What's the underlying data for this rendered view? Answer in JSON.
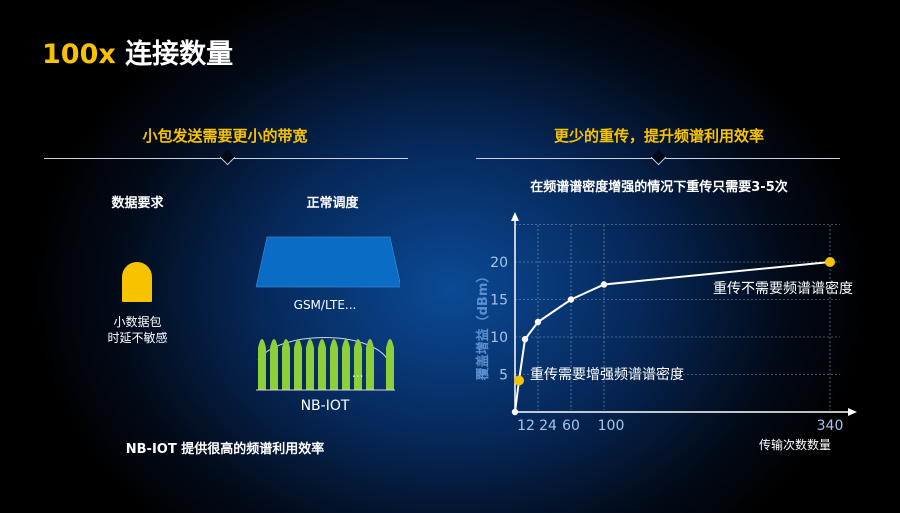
{
  "title": {
    "highlight": "100x",
    "rest": " 连接数量"
  },
  "left": {
    "heading": "小包发送需要更小的带宽",
    "col1_label": "数据要求",
    "col2_label": "正常调度",
    "packet_caption_line1": "小数据包",
    "packet_caption_line2": "时延不敏感",
    "gsm_label": "GSM/LTE...",
    "nb_ellipsis": "...",
    "nb_label": "NB-IOT",
    "footer": "NB-IOT 提供很高的频谱利用效率"
  },
  "right": {
    "heading": "更少的重传，提升频谱利用效率",
    "subtitle": "在频谱谱密度增强的情况下重传只需要3-5次"
  },
  "colors": {
    "accent": "#f7c300",
    "gsm_block": "#0a6cc4",
    "nb_carrier": "#8ccf3a",
    "background": "#06285a"
  },
  "chart_data": {
    "type": "line",
    "title": "在频谱谱密度增强的情况下重传只需要3-5次",
    "xlabel": "传输次数数量",
    "ylabel": "覆盖增益（dBm）",
    "x_ticks": [
      "12",
      "24",
      "60",
      "100",
      "340"
    ],
    "y_ticks": [
      "5",
      "10",
      "15",
      "20"
    ],
    "ylim": [
      0,
      25
    ],
    "grid": true,
    "points": [
      {
        "x": 0,
        "y": 0
      },
      {
        "x": 3,
        "y": 4.2,
        "highlight": true
      },
      {
        "x": 12,
        "y": 9.7
      },
      {
        "x": 24,
        "y": 12
      },
      {
        "x": 60,
        "y": 15
      },
      {
        "x": 100,
        "y": 17
      },
      {
        "x": 340,
        "y": 20,
        "highlight": true
      }
    ],
    "annotations": [
      "重传需要增强频谱谱密度",
      "重传不需要频谱谱密度"
    ]
  }
}
